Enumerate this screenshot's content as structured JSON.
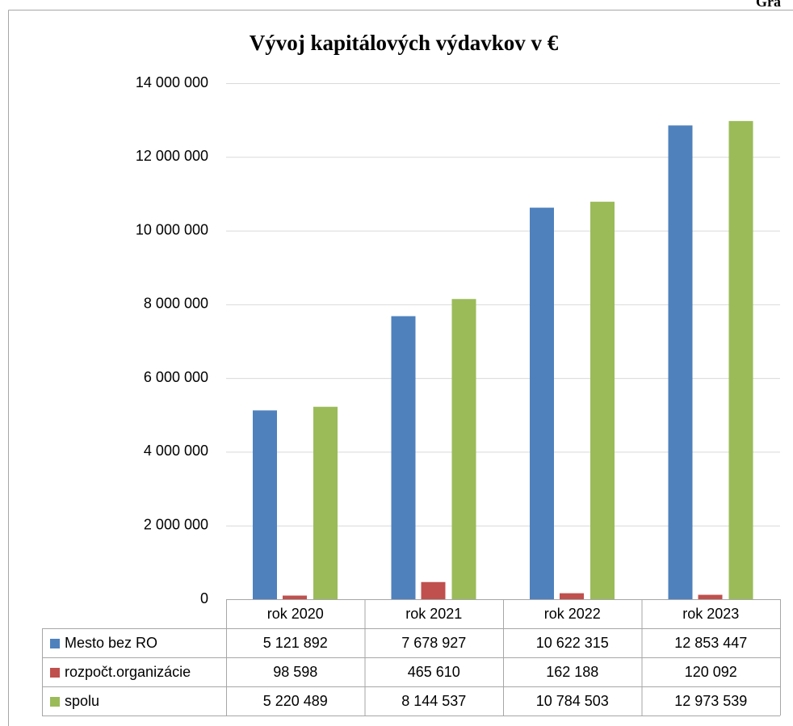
{
  "chart_data": {
    "type": "bar",
    "title": "Vývoj kapitálových výdavkov v €",
    "annotation": "Gra",
    "categories": [
      "rok 2020",
      "rok 2021",
      "rok 2022",
      "rok 2023"
    ],
    "series": [
      {
        "name": "Mesto bez RO",
        "color": "#4f81bd",
        "values": [
          5121892,
          7678927,
          10622315,
          12853447
        ],
        "value_labels": [
          "5 121 892",
          "7 678 927",
          "10 622 315",
          "12 853 447"
        ]
      },
      {
        "name": "rozpočt.organizácie",
        "color": "#c0504d",
        "values": [
          98598,
          465610,
          162188,
          120092
        ],
        "value_labels": [
          "98 598",
          "465 610",
          "162 188",
          "120 092"
        ]
      },
      {
        "name": "spolu",
        "color": "#9bbb59",
        "values": [
          5220489,
          8144537,
          10784503,
          12973539
        ],
        "value_labels": [
          "5 220 489",
          "8 144 537",
          "10 784 503",
          "12 973 539"
        ]
      }
    ],
    "ylim": [
      0,
      14000000
    ],
    "yticks": [
      0,
      {
        "value": 2000000,
        "label": "2 000 000"
      },
      {
        "value": 4000000,
        "label": "4 000 000"
      },
      {
        "value": 6000000,
        "label": "6 000 000"
      },
      {
        "value": 8000000,
        "label": "8 000 000"
      },
      {
        "value": 10000000,
        "label": "10 000 000"
      },
      {
        "value": 12000000,
        "label": "12 000 000"
      },
      {
        "value": 14000000,
        "label": "14 000 000"
      }
    ],
    "grid": true
  }
}
